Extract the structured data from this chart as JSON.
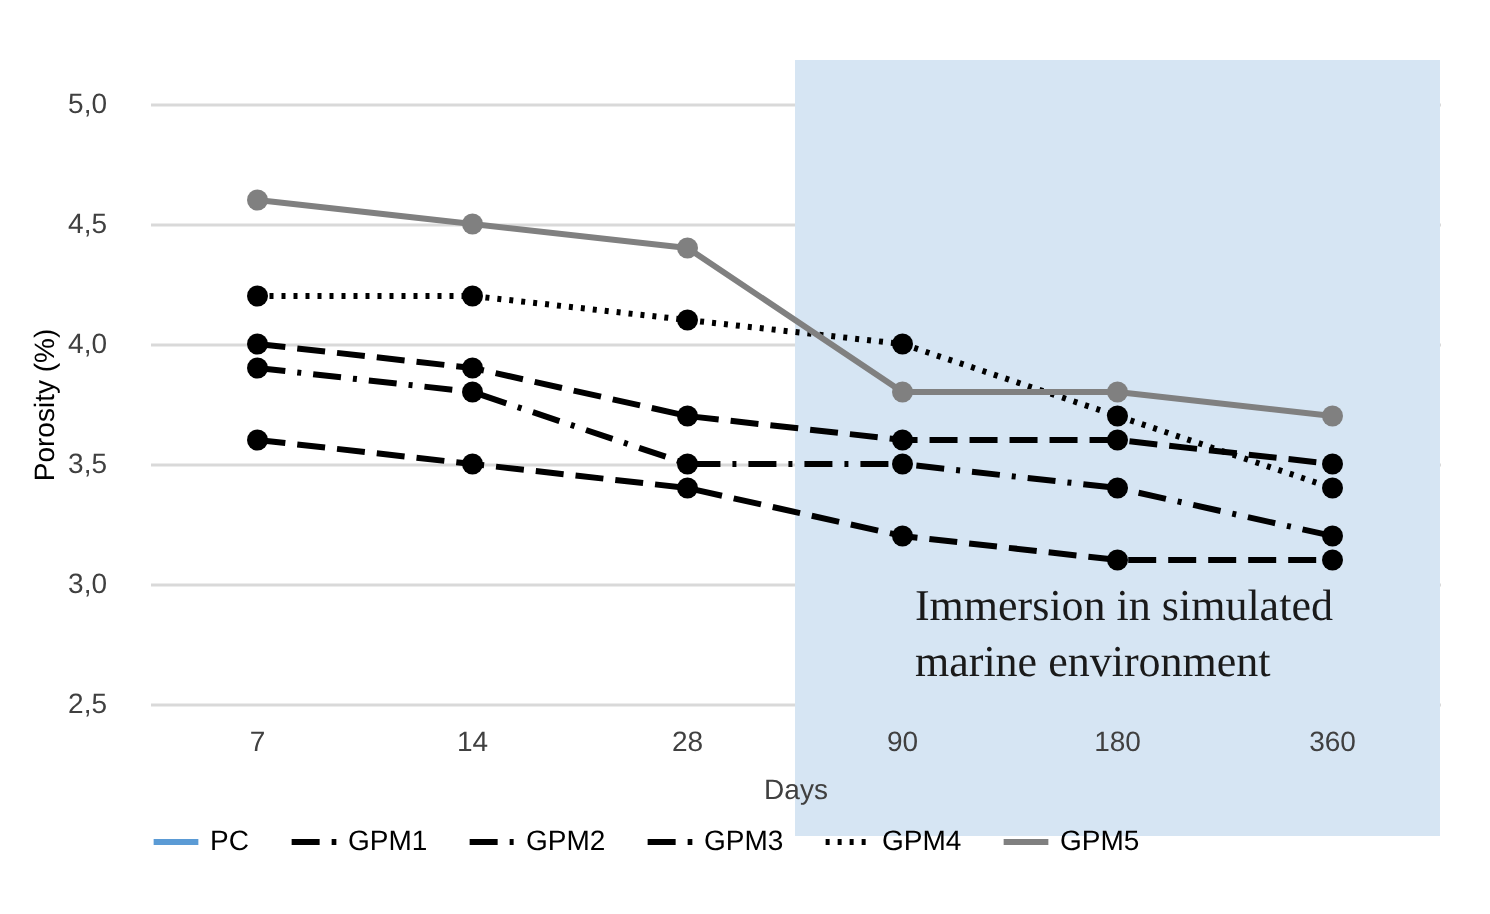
{
  "chart_data": {
    "type": "line",
    "xlabel": "Days",
    "ylabel": "Porosity (%)",
    "categories": [
      "7",
      "14",
      "28",
      "90",
      "180",
      "360"
    ],
    "ylim": [
      2.5,
      5.0
    ],
    "yticks": [
      {
        "value": 2.5,
        "label": "2,5"
      },
      {
        "value": 3.0,
        "label": "3,0"
      },
      {
        "value": 3.5,
        "label": "3,5"
      },
      {
        "value": 4.0,
        "label": "4,0"
      },
      {
        "value": 4.5,
        "label": "4,5"
      },
      {
        "value": 5.0,
        "label": "5,0"
      }
    ],
    "grid": "y",
    "legend": "bottom",
    "marker": "circle",
    "bands": [
      {
        "axis": "x",
        "from": "90",
        "to": "360",
        "label": "Immersion in simulated marine environment",
        "color": "#d6e5f3"
      }
    ],
    "series": [
      {
        "name": "PC",
        "color": "#5b9bd5",
        "line_style": "solid",
        "values": [
          null,
          null,
          null,
          null,
          null,
          null
        ]
      },
      {
        "name": "GPM1",
        "color": "#000000",
        "line_style": "dashed",
        "values": [
          4.0,
          3.9,
          3.7,
          3.6,
          3.6,
          3.5
        ]
      },
      {
        "name": "GPM2",
        "color": "#000000",
        "line_style": "dashdot",
        "values": [
          3.9,
          3.8,
          3.5,
          3.5,
          3.4,
          3.2
        ]
      },
      {
        "name": "GPM3",
        "color": "#000000",
        "line_style": "dashed",
        "values": [
          3.6,
          3.5,
          3.4,
          3.2,
          3.1,
          3.1
        ]
      },
      {
        "name": "GPM4",
        "color": "#000000",
        "line_style": "dotted",
        "values": [
          4.2,
          4.2,
          4.1,
          4.0,
          3.7,
          3.4
        ]
      },
      {
        "name": "GPM5",
        "color": "#808080",
        "line_style": "solid",
        "values": [
          4.6,
          4.5,
          4.4,
          3.8,
          3.8,
          3.7
        ]
      }
    ]
  }
}
